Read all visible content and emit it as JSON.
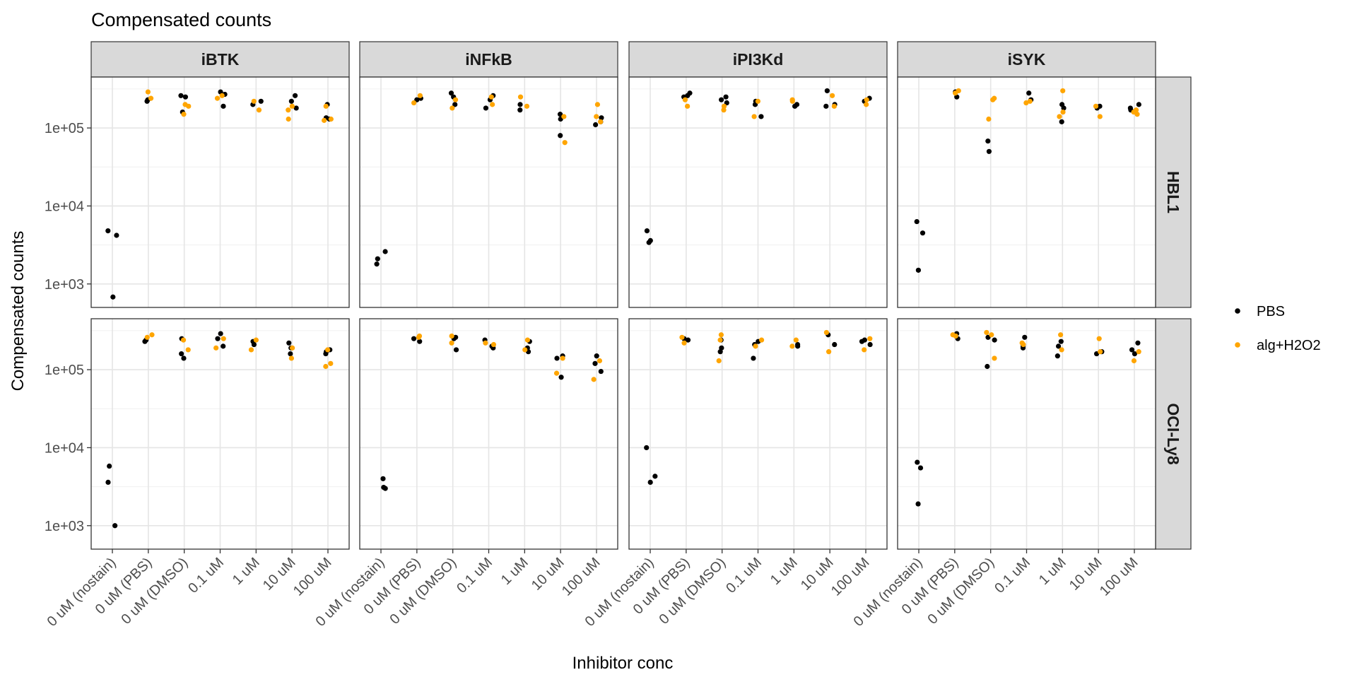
{
  "chart_data": {
    "type": "scatter",
    "title": "Compensated counts",
    "xlabel": "Inhibitor conc",
    "ylabel": "Compensated counts",
    "y_scale": "log10",
    "ylim": [
      500,
      450000
    ],
    "yticks": [
      1000,
      10000,
      100000
    ],
    "ytick_labels": [
      "1e+03",
      "1e+04",
      "1e+05"
    ],
    "categories": [
      "0 uM (nostain)",
      "0 uM (PBS)",
      "0 uM (DMSO)",
      "0.1 uM",
      "1 uM",
      "10 uM",
      "100 uM"
    ],
    "facet_columns": [
      "iBTK",
      "iNFkB",
      "iPI3Kd",
      "iSYK"
    ],
    "facet_rows": [
      "HBL1",
      "OCI-Ly8"
    ],
    "grid": true,
    "legend": {
      "position": "right",
      "entries": [
        {
          "label": "PBS",
          "color": "#000000"
        },
        {
          "label": "alg+H2O2",
          "color": "#FFA500"
        }
      ]
    },
    "panels": [
      {
        "row": "HBL1",
        "col": "iBTK",
        "PBS": [
          [
            0,
            4200
          ],
          [
            0,
            4800
          ],
          [
            0,
            680
          ],
          [
            1,
            220000
          ],
          [
            1,
            230000
          ],
          [
            2,
            250000
          ],
          [
            2,
            260000
          ],
          [
            2,
            160000
          ],
          [
            3,
            290000
          ],
          [
            3,
            270000
          ],
          [
            3,
            190000
          ],
          [
            4,
            200000
          ],
          [
            4,
            220000
          ],
          [
            5,
            260000
          ],
          [
            5,
            220000
          ],
          [
            5,
            180000
          ],
          [
            6,
            200000
          ],
          [
            6,
            130000
          ],
          [
            6,
            135000
          ]
        ],
        "alg+H2O2": [
          [
            1,
            290000
          ],
          [
            1,
            240000
          ],
          [
            2,
            200000
          ],
          [
            2,
            190000
          ],
          [
            2,
            150000
          ],
          [
            3,
            240000
          ],
          [
            3,
            260000
          ],
          [
            4,
            170000
          ],
          [
            4,
            220000
          ],
          [
            5,
            190000
          ],
          [
            5,
            130000
          ],
          [
            5,
            170000
          ],
          [
            6,
            190000
          ],
          [
            6,
            125000
          ],
          [
            6,
            130000
          ]
        ]
      },
      {
        "row": "HBL1",
        "col": "iNFkB",
        "PBS": [
          [
            0,
            2600
          ],
          [
            0,
            1800
          ],
          [
            0,
            2100
          ],
          [
            1,
            230000
          ],
          [
            1,
            240000
          ],
          [
            2,
            280000
          ],
          [
            2,
            250000
          ],
          [
            2,
            200000
          ],
          [
            3,
            260000
          ],
          [
            3,
            180000
          ],
          [
            3,
            230000
          ],
          [
            4,
            200000
          ],
          [
            4,
            170000
          ],
          [
            5,
            130000
          ],
          [
            5,
            150000
          ],
          [
            5,
            80000
          ],
          [
            6,
            120000
          ],
          [
            6,
            110000
          ],
          [
            6,
            135000
          ]
        ],
        "alg+H2O2": [
          [
            1,
            260000
          ],
          [
            1,
            210000
          ],
          [
            2,
            180000
          ],
          [
            2,
            230000
          ],
          [
            3,
            250000
          ],
          [
            3,
            200000
          ],
          [
            4,
            250000
          ],
          [
            4,
            190000
          ],
          [
            5,
            140000
          ],
          [
            5,
            65000
          ],
          [
            6,
            200000
          ],
          [
            6,
            140000
          ],
          [
            6,
            120000
          ]
        ]
      },
      {
        "row": "HBL1",
        "col": "iPI3Kd",
        "PBS": [
          [
            0,
            4800
          ],
          [
            0,
            3600
          ],
          [
            0,
            3400
          ],
          [
            1,
            280000
          ],
          [
            1,
            260000
          ],
          [
            1,
            250000
          ],
          [
            2,
            250000
          ],
          [
            2,
            210000
          ],
          [
            2,
            230000
          ],
          [
            3,
            220000
          ],
          [
            3,
            200000
          ],
          [
            3,
            140000
          ],
          [
            4,
            200000
          ],
          [
            4,
            190000
          ],
          [
            5,
            300000
          ],
          [
            5,
            200000
          ],
          [
            5,
            190000
          ],
          [
            6,
            240000
          ],
          [
            6,
            220000
          ]
        ],
        "alg+H2O2": [
          [
            1,
            190000
          ],
          [
            1,
            230000
          ],
          [
            2,
            170000
          ],
          [
            2,
            190000
          ],
          [
            3,
            220000
          ],
          [
            3,
            140000
          ],
          [
            4,
            220000
          ],
          [
            4,
            230000
          ],
          [
            5,
            260000
          ],
          [
            5,
            190000
          ],
          [
            6,
            200000
          ],
          [
            6,
            230000
          ]
        ]
      },
      {
        "row": "HBL1",
        "col": "iSYK",
        "PBS": [
          [
            0,
            6300
          ],
          [
            0,
            4500
          ],
          [
            0,
            1500
          ],
          [
            1,
            290000
          ],
          [
            1,
            250000
          ],
          [
            2,
            68000
          ],
          [
            2,
            50000
          ],
          [
            3,
            280000
          ],
          [
            3,
            230000
          ],
          [
            4,
            200000
          ],
          [
            4,
            180000
          ],
          [
            4,
            120000
          ],
          [
            5,
            180000
          ],
          [
            5,
            190000
          ],
          [
            6,
            200000
          ],
          [
            6,
            180000
          ],
          [
            6,
            170000
          ]
        ],
        "alg+H2O2": [
          [
            1,
            280000
          ],
          [
            1,
            300000
          ],
          [
            2,
            240000
          ],
          [
            2,
            230000
          ],
          [
            2,
            130000
          ],
          [
            3,
            220000
          ],
          [
            3,
            210000
          ],
          [
            4,
            300000
          ],
          [
            4,
            160000
          ],
          [
            4,
            140000
          ],
          [
            5,
            190000
          ],
          [
            5,
            140000
          ],
          [
            6,
            170000
          ],
          [
            6,
            160000
          ],
          [
            6,
            150000
          ]
        ]
      },
      {
        "row": "OCI-Ly8",
        "col": "iBTK",
        "PBS": [
          [
            0,
            5800
          ],
          [
            0,
            3600
          ],
          [
            0,
            1000
          ],
          [
            1,
            240000
          ],
          [
            1,
            230000
          ],
          [
            2,
            250000
          ],
          [
            2,
            140000
          ],
          [
            2,
            160000
          ],
          [
            3,
            290000
          ],
          [
            3,
            250000
          ],
          [
            3,
            200000
          ],
          [
            4,
            230000
          ],
          [
            4,
            210000
          ],
          [
            5,
            220000
          ],
          [
            5,
            190000
          ],
          [
            5,
            160000
          ],
          [
            6,
            180000
          ],
          [
            6,
            160000
          ],
          [
            6,
            170000
          ]
        ],
        "alg+H2O2": [
          [
            1,
            280000
          ],
          [
            1,
            260000
          ],
          [
            2,
            240000
          ],
          [
            2,
            180000
          ],
          [
            3,
            250000
          ],
          [
            3,
            190000
          ],
          [
            4,
            240000
          ],
          [
            4,
            180000
          ],
          [
            5,
            190000
          ],
          [
            5,
            140000
          ],
          [
            6,
            180000
          ],
          [
            6,
            120000
          ],
          [
            6,
            110000
          ]
        ]
      },
      {
        "row": "OCI-Ly8",
        "col": "iNFkB",
        "PBS": [
          [
            0,
            4000
          ],
          [
            0,
            3100
          ],
          [
            0,
            3000
          ],
          [
            1,
            230000
          ],
          [
            1,
            250000
          ],
          [
            2,
            260000
          ],
          [
            2,
            180000
          ],
          [
            2,
            250000
          ],
          [
            3,
            240000
          ],
          [
            3,
            200000
          ],
          [
            3,
            190000
          ],
          [
            4,
            230000
          ],
          [
            4,
            190000
          ],
          [
            4,
            170000
          ],
          [
            5,
            150000
          ],
          [
            5,
            80000
          ],
          [
            5,
            140000
          ],
          [
            6,
            150000
          ],
          [
            6,
            120000
          ],
          [
            6,
            95000
          ]
        ],
        "alg+H2O2": [
          [
            1,
            270000
          ],
          [
            1,
            260000
          ],
          [
            2,
            270000
          ],
          [
            2,
            220000
          ],
          [
            3,
            220000
          ],
          [
            3,
            210000
          ],
          [
            4,
            240000
          ],
          [
            4,
            180000
          ],
          [
            5,
            140000
          ],
          [
            5,
            90000
          ],
          [
            6,
            130000
          ],
          [
            6,
            75000
          ]
        ]
      },
      {
        "row": "OCI-Ly8",
        "col": "iPI3Kd",
        "PBS": [
          [
            0,
            10000
          ],
          [
            0,
            4300
          ],
          [
            0,
            3600
          ],
          [
            1,
            250000
          ],
          [
            1,
            240000
          ],
          [
            2,
            240000
          ],
          [
            2,
            190000
          ],
          [
            2,
            170000
          ],
          [
            3,
            230000
          ],
          [
            3,
            210000
          ],
          [
            3,
            140000
          ],
          [
            4,
            210000
          ],
          [
            4,
            200000
          ],
          [
            5,
            280000
          ],
          [
            5,
            210000
          ],
          [
            6,
            240000
          ],
          [
            6,
            230000
          ],
          [
            6,
            210000
          ]
        ],
        "alg+H2O2": [
          [
            1,
            260000
          ],
          [
            1,
            220000
          ],
          [
            2,
            280000
          ],
          [
            2,
            240000
          ],
          [
            2,
            130000
          ],
          [
            3,
            240000
          ],
          [
            3,
            200000
          ],
          [
            4,
            240000
          ],
          [
            4,
            200000
          ],
          [
            5,
            300000
          ],
          [
            5,
            170000
          ],
          [
            6,
            250000
          ],
          [
            6,
            180000
          ]
        ]
      },
      {
        "row": "OCI-Ly8",
        "col": "iSYK",
        "PBS": [
          [
            0,
            6500
          ],
          [
            0,
            5500
          ],
          [
            0,
            1900
          ],
          [
            1,
            250000
          ],
          [
            1,
            290000
          ],
          [
            2,
            260000
          ],
          [
            2,
            240000
          ],
          [
            2,
            110000
          ],
          [
            3,
            260000
          ],
          [
            3,
            200000
          ],
          [
            3,
            190000
          ],
          [
            4,
            230000
          ],
          [
            4,
            200000
          ],
          [
            4,
            150000
          ],
          [
            5,
            170000
          ],
          [
            5,
            160000
          ],
          [
            6,
            220000
          ],
          [
            6,
            180000
          ],
          [
            6,
            160000
          ]
        ],
        "alg+H2O2": [
          [
            1,
            280000
          ],
          [
            1,
            270000
          ],
          [
            2,
            300000
          ],
          [
            2,
            280000
          ],
          [
            2,
            140000
          ],
          [
            3,
            220000
          ],
          [
            3,
            210000
          ],
          [
            4,
            280000
          ],
          [
            4,
            180000
          ],
          [
            5,
            250000
          ],
          [
            5,
            170000
          ],
          [
            6,
            170000
          ],
          [
            6,
            130000
          ]
        ]
      }
    ]
  }
}
